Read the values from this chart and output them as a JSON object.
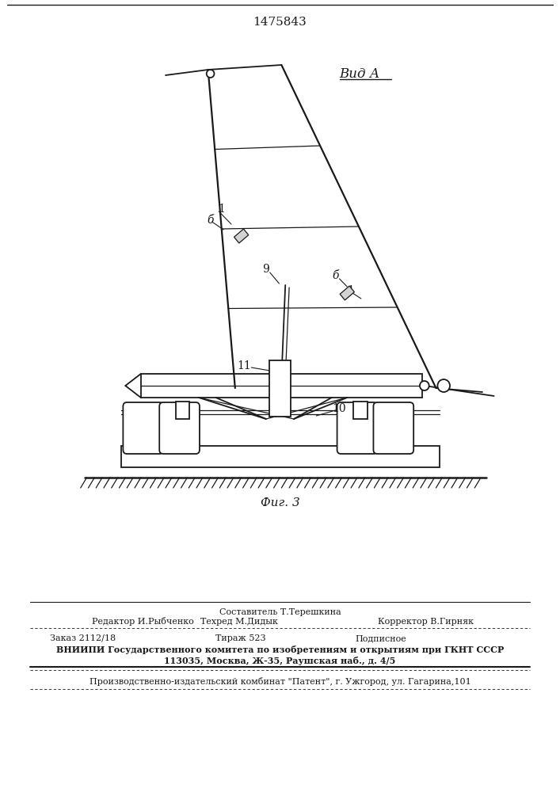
{
  "patent_number": "1475843",
  "view_label": "Вид А",
  "fig_label": "Фиг. 3",
  "background_color": "#ffffff",
  "line_color": "#1a1a1a",
  "footer": {
    "composer": "Составитель Т.Терешкина",
    "editor": "Редактор И.Рыбченко",
    "techred": "Техред М.Дидык",
    "corrector": "Корректор В.Гирняк",
    "order": "Заказ 2112/18",
    "tirazh": "Тираж 523",
    "podpisnoe": "Подписное",
    "vniiipi": "ВНИИПИ Государственного комитета по изобретениям и открытиям при ГКНТ СССР",
    "address": "113035, Москва, Ж-35, Раушская наб., д. 4/5",
    "production": "Производственно-издательский комбинат \"Патент\", г. Ужгород, ул. Гагарина,101"
  }
}
